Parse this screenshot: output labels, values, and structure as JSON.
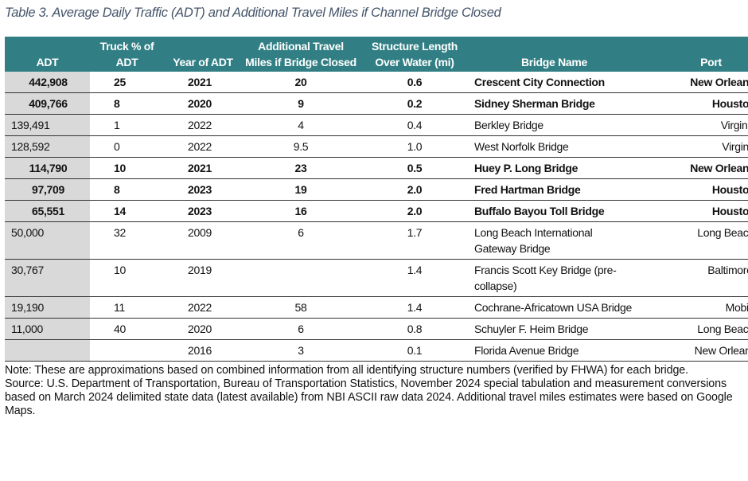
{
  "title": "Table 3. Average Daily Traffic (ADT) and Additional Travel Miles if Channel Bridge Closed",
  "headers": [
    "ADT",
    "Truck % of ADT",
    "Year of ADT",
    "Additional Travel Miles if Bridge Closed",
    "Structure Length Over Water (mi)",
    "Bridge Name",
    "Port"
  ],
  "rows": [
    {
      "bold": true,
      "cells": [
        "442,908",
        "25",
        "2021",
        "20",
        "0.6",
        "Crescent City Connection",
        "New Orleans, LA"
      ]
    },
    {
      "bold": true,
      "cells": [
        "409,766",
        "8",
        "2020",
        "9",
        "0.2",
        "Sidney Sherman Bridge",
        "Houston, TX"
      ]
    },
    {
      "bold": false,
      "cells": [
        "139,491",
        "1",
        "2022",
        "4",
        "0.4",
        "Berkley Bridge",
        "Virginia, VA"
      ]
    },
    {
      "bold": false,
      "cells": [
        "128,592",
        "0",
        "2022",
        "9.5",
        "1.0",
        "West Norfolk Bridge",
        "Virginia, Va"
      ]
    },
    {
      "bold": true,
      "cells": [
        "114,790",
        "10",
        "2021",
        "23",
        "0.5",
        "Huey P. Long Bridge",
        "New Orleans, LA"
      ]
    },
    {
      "bold": true,
      "cells": [
        "97,709",
        "8",
        "2023",
        "19",
        "2.0",
        "Fred Hartman Bridge",
        "Houston, TX"
      ]
    },
    {
      "bold": true,
      "cells": [
        "65,551",
        "14",
        "2023",
        "16",
        "2.0",
        "Buffalo Bayou Toll Bridge",
        "Houston, TX"
      ]
    },
    {
      "bold": false,
      "cells": [
        "50,000",
        "32",
        "2009",
        "6",
        "1.7",
        "Long Beach International Gateway Bridge",
        "Long Beach, CA"
      ]
    },
    {
      "bold": false,
      "cells": [
        "30,767",
        "10",
        "2019",
        "",
        "1.4",
        "Francis Scott Key Bridge (pre-collapse)",
        "Baltimore, MD"
      ]
    },
    {
      "bold": false,
      "cells": [
        "19,190",
        "11",
        "2022",
        "58",
        "1.4",
        "Cochrane-Africatown USA Bridge",
        "Mobile, AL"
      ]
    },
    {
      "bold": false,
      "cells": [
        "11,000",
        "40",
        "2020",
        "6",
        "0.8",
        "Schuyler F. Heim Bridge",
        "Long Beach, CA"
      ]
    },
    {
      "bold": false,
      "cells": [
        "",
        "",
        "2016",
        "3",
        "0.1",
        "Florida Avenue Bridge",
        "New Orleans, LA"
      ]
    }
  ],
  "note": "Note: These are approximations based on combined information from all identifying structure numbers (verified by FHWA) for each bridge.",
  "source": "Source: U.S. Department of Transportation, Bureau of Transportation Statistics, November 2024 special tabulation and measurement conversions based on March 2024 delimited state data (latest available) from NBI ASCII raw data 2024. Additional travel miles estimates were based on Google Maps.",
  "colors": {
    "header_bg": "#317f84",
    "adt_column_bg": "#d9d9d9",
    "title": "#44546a"
  }
}
